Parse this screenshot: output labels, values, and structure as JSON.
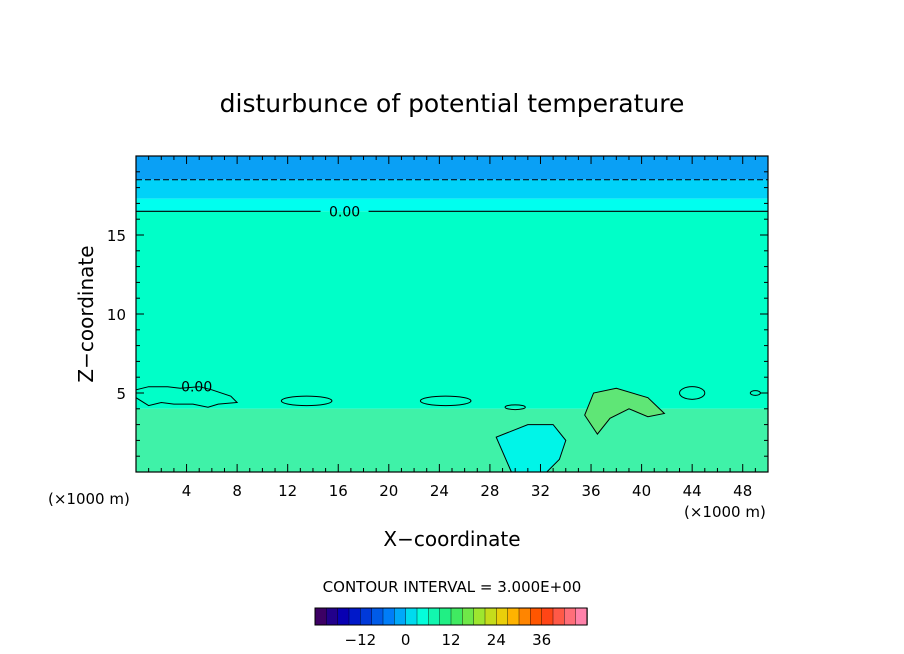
{
  "chart_data": {
    "type": "heatmap",
    "title": "disturbunce of potential temperature",
    "xlabel": "X−coordinate",
    "ylabel": "Z−coordinate",
    "x_unit_left": "(×1000 m)",
    "x_unit_right": "(×1000 m)",
    "xlim": [
      0,
      50
    ],
    "ylim": [
      0,
      20
    ],
    "x_ticks": [
      4,
      8,
      12,
      16,
      20,
      24,
      28,
      32,
      36,
      40,
      44,
      48
    ],
    "y_ticks": [
      5,
      10,
      15
    ],
    "contour_interval_label": "CONTOUR INTERVAL = 3.000E+00",
    "contour_labels": [
      {
        "text": "0.00",
        "x": 16.5,
        "y": 16.5
      },
      {
        "text": "0.00",
        "x": 4.8,
        "y": 5.4
      }
    ],
    "bands": [
      {
        "z0": 18.5,
        "z1": 20,
        "value": -9,
        "color": "#0aa0f5"
      },
      {
        "z0": 17.3,
        "z1": 18.5,
        "value": -6,
        "color": "#00d2f8"
      },
      {
        "z0": 16.5,
        "z1": 17.3,
        "value": -3,
        "color": "#00ffef"
      },
      {
        "z0": 4,
        "z1": 16.5,
        "value": 0,
        "color": "#00ffc8"
      },
      {
        "z0": 0,
        "z1": 4,
        "value": 3,
        "color": "#3ff2a8"
      }
    ],
    "features": [
      {
        "name": "cold-anomaly",
        "x_center": 31,
        "z_center": 1.5,
        "value": -3,
        "color": "#00f5e8"
      },
      {
        "name": "warm-anomaly",
        "x_center": 39,
        "z_center": 4,
        "value": 6,
        "color": "#5fe676"
      }
    ],
    "colorbar": {
      "min": -24,
      "max": 48,
      "step": 3,
      "ticks": [
        -12,
        0,
        12,
        24,
        36
      ]
    }
  }
}
